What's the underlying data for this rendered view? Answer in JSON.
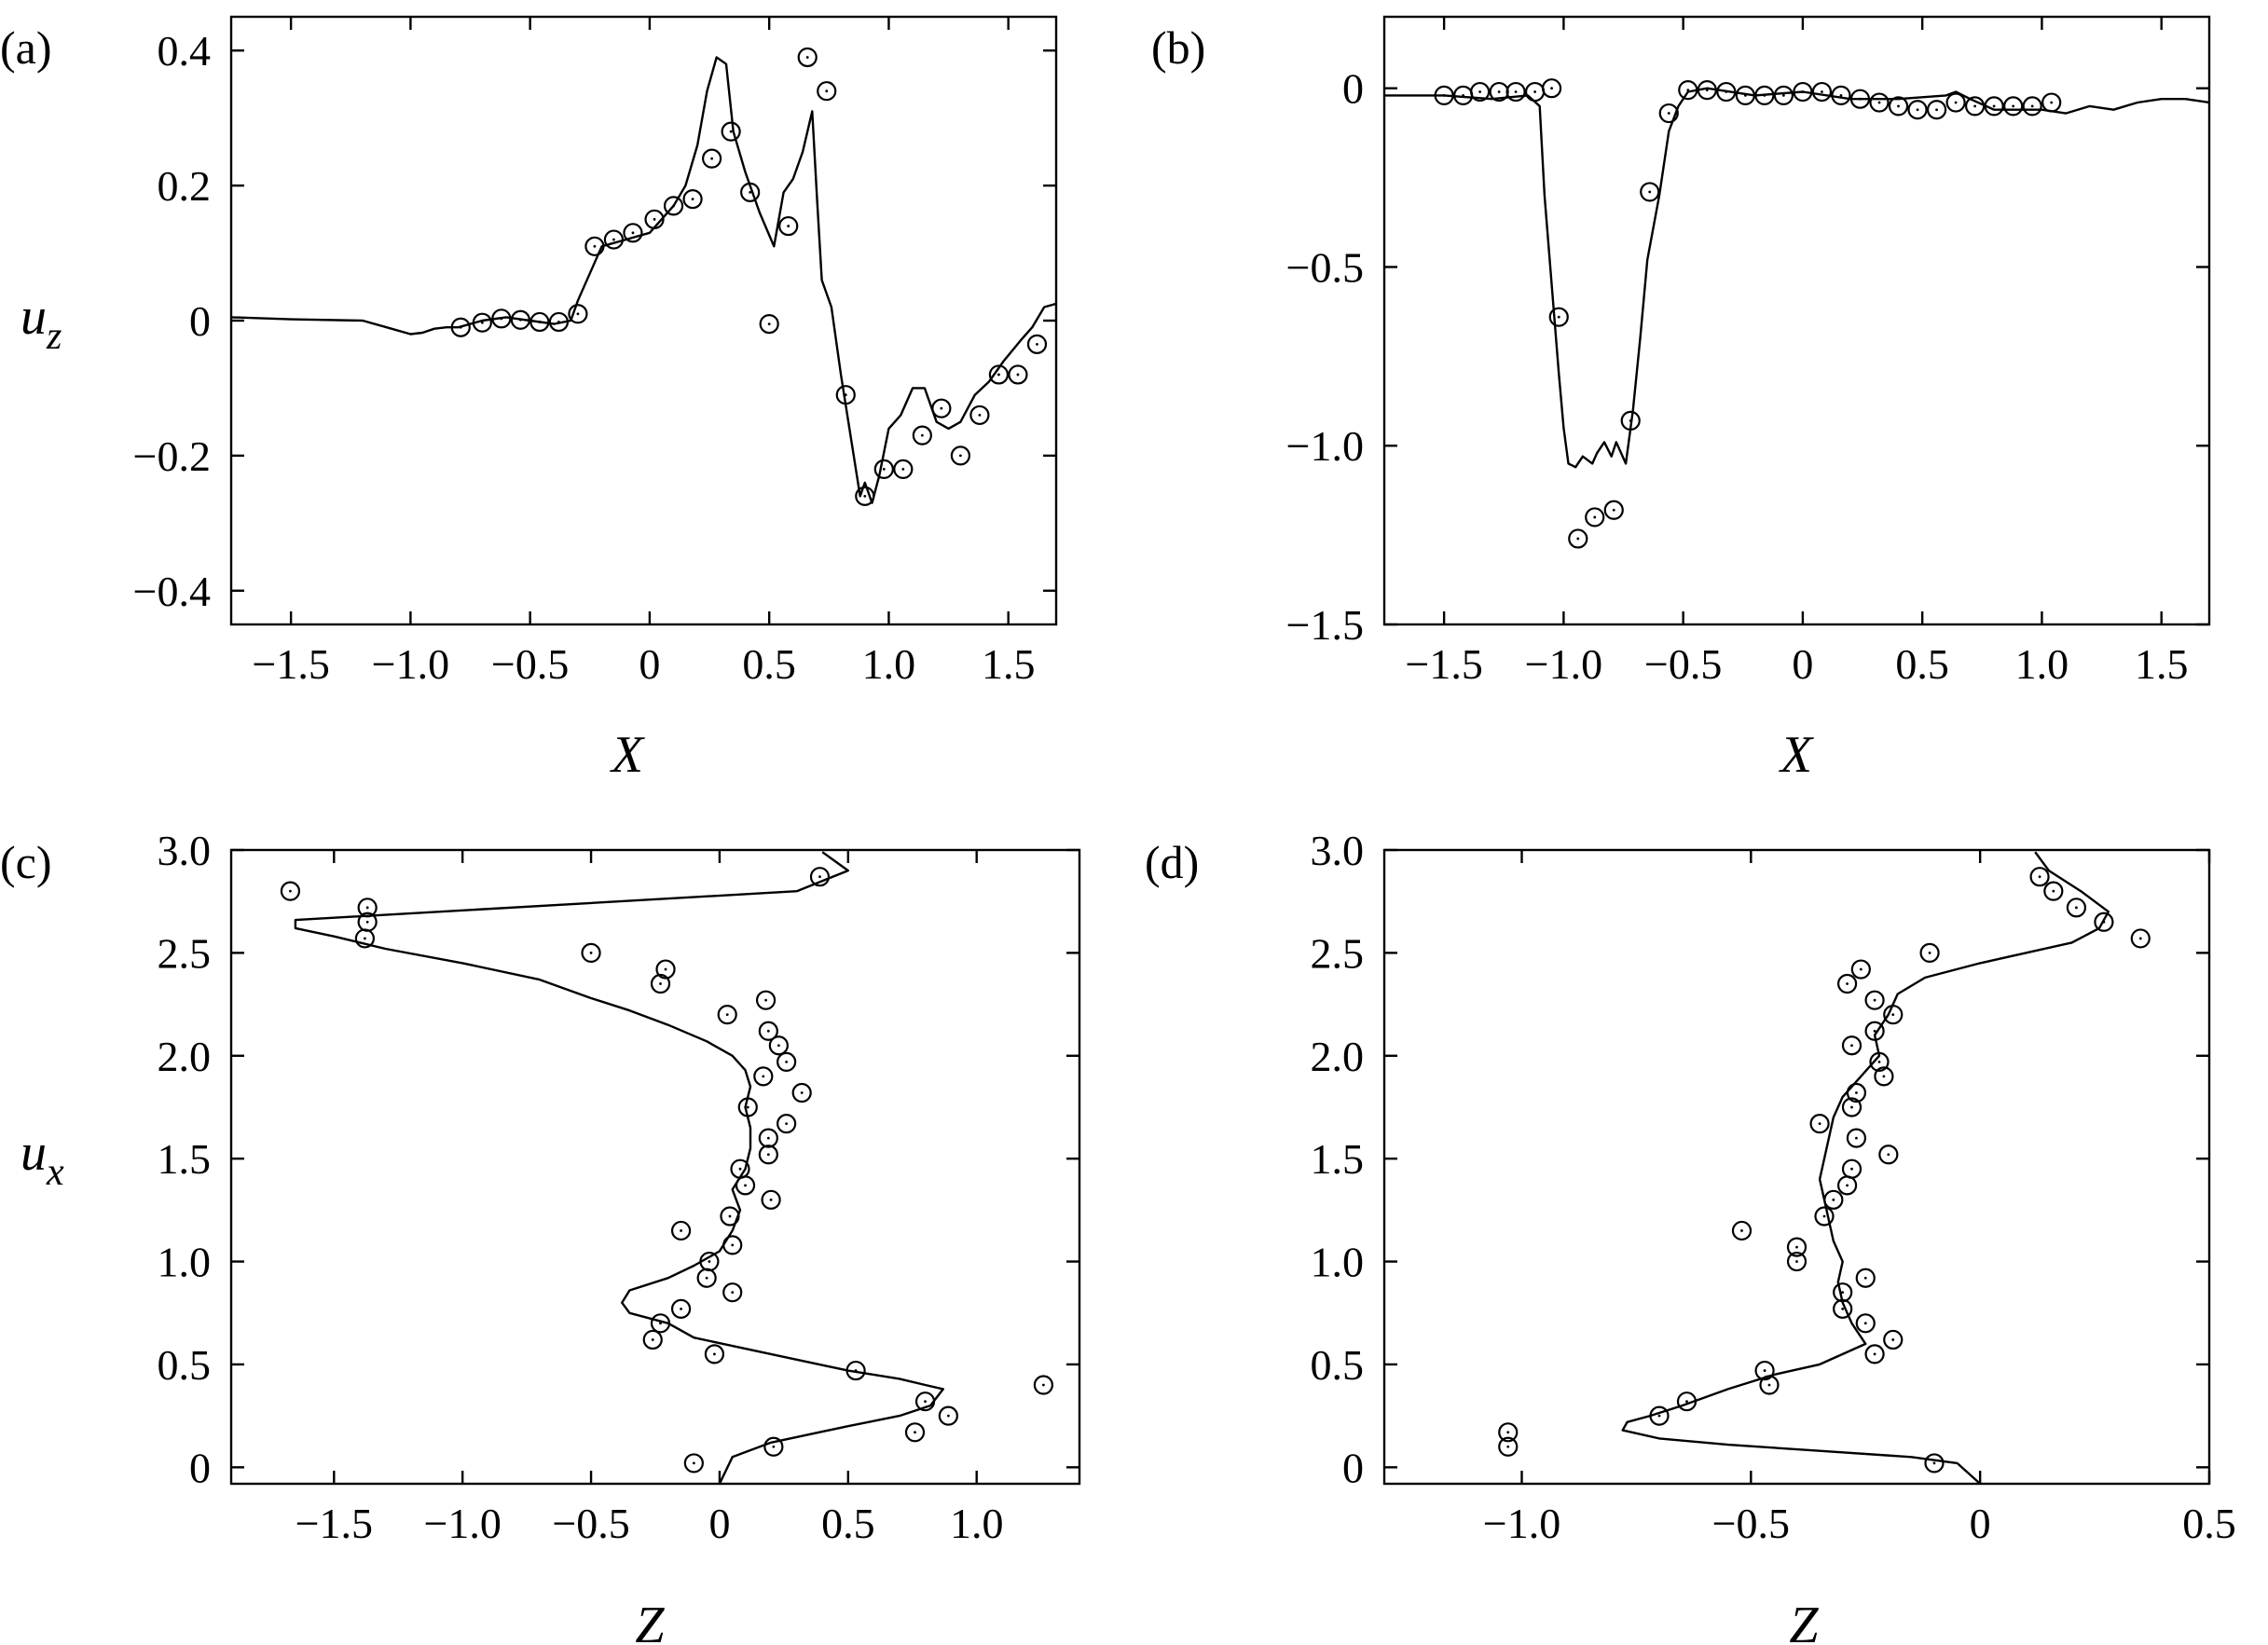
{
  "chart_data": [
    {
      "panel": "(a)",
      "type": "line",
      "xlabel": "X",
      "ylabel_main": "u",
      "ylabel_sub": "z",
      "xlim": [
        -1.75,
        1.7
      ],
      "ylim": [
        -0.45,
        0.45
      ],
      "xticks": [
        -1.5,
        -1.0,
        -0.5,
        0,
        0.5,
        1.0,
        1.5
      ],
      "xtick_labels": [
        "−1.5",
        "−1.0",
        "−0.5",
        "0",
        "0.5",
        "1.0",
        "1.5"
      ],
      "yticks": [
        -0.4,
        -0.2,
        0,
        0.2,
        0.4
      ],
      "ytick_labels": [
        "−0.4",
        "−0.2",
        "0",
        "0.2",
        "0.4"
      ],
      "line": {
        "x": [
          -1.75,
          -1.5,
          -1.2,
          -1.1,
          -1.0,
          -0.95,
          -0.9,
          -0.85,
          -0.8,
          -0.7,
          -0.6,
          -0.5,
          -0.4,
          -0.33,
          -0.3,
          -0.25,
          -0.2,
          -0.1,
          0.0,
          0.1,
          0.15,
          0.2,
          0.24,
          0.28,
          0.32,
          0.35,
          0.4,
          0.46,
          0.52,
          0.56,
          0.6,
          0.64,
          0.68,
          0.7,
          0.72,
          0.76,
          0.8,
          0.84,
          0.88,
          0.9,
          0.93,
          0.96,
          1.0,
          1.05,
          1.1,
          1.15,
          1.2,
          1.25,
          1.3,
          1.36,
          1.42,
          1.48,
          1.55,
          1.6,
          1.65,
          1.7
        ],
        "y": [
          0.005,
          0.002,
          0.0,
          -0.01,
          -0.02,
          -0.018,
          -0.012,
          -0.01,
          -0.01,
          0.0,
          0.005,
          0.0,
          -0.005,
          0.0,
          0.03,
          0.07,
          0.11,
          0.12,
          0.13,
          0.17,
          0.2,
          0.26,
          0.34,
          0.39,
          0.38,
          0.28,
          0.22,
          0.16,
          0.11,
          0.19,
          0.21,
          0.25,
          0.31,
          0.18,
          0.06,
          0.02,
          -0.08,
          -0.17,
          -0.26,
          -0.24,
          -0.27,
          -0.23,
          -0.16,
          -0.14,
          -0.1,
          -0.1,
          -0.15,
          -0.16,
          -0.15,
          -0.11,
          -0.09,
          -0.06,
          -0.03,
          -0.01,
          0.02,
          0.025
        ]
      },
      "points": {
        "x": [
          -0.79,
          -0.7,
          -0.62,
          -0.54,
          -0.46,
          -0.38,
          -0.3,
          -0.23,
          -0.15,
          -0.07,
          0.02,
          0.1,
          0.18,
          0.26,
          0.34,
          0.42,
          0.5,
          0.58,
          0.66,
          0.74,
          0.82,
          0.9,
          0.98,
          1.06,
          1.14,
          1.22,
          1.3,
          1.38,
          1.46,
          1.54,
          1.62
        ],
        "y": [
          -0.01,
          -0.003,
          0.003,
          0.001,
          -0.002,
          -0.002,
          0.01,
          0.11,
          0.12,
          0.13,
          0.15,
          0.17,
          0.18,
          0.24,
          0.28,
          0.19,
          -0.005,
          0.14,
          0.39,
          0.34,
          -0.11,
          -0.26,
          -0.22,
          -0.22,
          -0.17,
          -0.13,
          -0.2,
          -0.14,
          -0.08,
          -0.08,
          -0.035
        ]
      }
    },
    {
      "panel": "(b)",
      "type": "line",
      "xlabel": "X",
      "xlim": [
        -1.75,
        1.7
      ],
      "ylim": [
        -1.5,
        0.2
      ],
      "xticks": [
        -1.5,
        -1.0,
        -0.5,
        0,
        0.5,
        1.0,
        1.5
      ],
      "xtick_labels": [
        "−1.5",
        "−1.0",
        "−0.5",
        "0",
        "0.5",
        "1.0",
        "1.5"
      ],
      "yticks": [
        -1.5,
        -1.0,
        -0.5,
        0
      ],
      "ytick_labels": [
        "−1.5",
        "−1.0",
        "−0.5",
        "0"
      ],
      "line": {
        "x": [
          -1.75,
          -1.5,
          -1.3,
          -1.15,
          -1.1,
          -1.08,
          -1.05,
          -1.02,
          -1.0,
          -0.98,
          -0.95,
          -0.92,
          -0.88,
          -0.86,
          -0.83,
          -0.8,
          -0.78,
          -0.74,
          -0.71,
          -0.68,
          -0.65,
          -0.6,
          -0.56,
          -0.52,
          -0.48,
          -0.4,
          -0.2,
          0.0,
          0.2,
          0.4,
          0.6,
          0.64,
          0.7,
          0.8,
          0.9,
          1.0,
          1.1,
          1.2,
          1.3,
          1.4,
          1.5,
          1.6,
          1.7
        ],
        "y": [
          -0.02,
          -0.02,
          -0.03,
          -0.02,
          -0.05,
          -0.3,
          -0.55,
          -0.8,
          -0.95,
          -1.05,
          -1.06,
          -1.03,
          -1.05,
          -1.02,
          -0.99,
          -1.03,
          -0.99,
          -1.05,
          -0.9,
          -0.7,
          -0.48,
          -0.3,
          -0.12,
          -0.05,
          -0.01,
          0.0,
          -0.02,
          -0.01,
          -0.03,
          -0.03,
          -0.02,
          -0.01,
          -0.03,
          -0.06,
          -0.06,
          -0.06,
          -0.07,
          -0.05,
          -0.06,
          -0.04,
          -0.03,
          -0.03,
          -0.04
        ]
      },
      "points": {
        "x": [
          -1.5,
          -1.42,
          -1.35,
          -1.27,
          -1.2,
          -1.12,
          -1.05,
          -1.02,
          -0.94,
          -0.87,
          -0.79,
          -0.72,
          -0.64,
          -0.56,
          -0.48,
          -0.4,
          -0.32,
          -0.24,
          -0.16,
          -0.08,
          0.0,
          0.08,
          0.16,
          0.24,
          0.32,
          0.4,
          0.48,
          0.56,
          0.64,
          0.72,
          0.8,
          0.88,
          0.96,
          1.04
        ],
        "y": [
          -0.02,
          -0.02,
          -0.01,
          -0.01,
          -0.01,
          -0.01,
          0.0,
          -0.64,
          -1.26,
          -1.2,
          -1.18,
          -0.93,
          -0.29,
          -0.07,
          -0.005,
          -0.005,
          -0.01,
          -0.02,
          -0.02,
          -0.02,
          -0.01,
          -0.01,
          -0.02,
          -0.03,
          -0.04,
          -0.05,
          -0.06,
          -0.06,
          -0.04,
          -0.05,
          -0.05,
          -0.05,
          -0.05,
          -0.04
        ]
      }
    },
    {
      "panel": "(c)",
      "type": "line",
      "xlabel": "Z",
      "ylabel_main": "u",
      "ylabel_sub": "x",
      "xlim": [
        -1.9,
        1.4
      ],
      "ylim": [
        -0.08,
        3.0
      ],
      "xticks": [
        -1.5,
        -1.0,
        -0.5,
        0,
        0.5,
        1.0
      ],
      "xtick_labels": [
        "−1.5",
        "−1.0",
        "−0.5",
        "0",
        "0.5",
        "1.0"
      ],
      "yticks": [
        0,
        0.5,
        1.0,
        1.5,
        2.0,
        2.5,
        3.0
      ],
      "ytick_labels": [
        "0",
        "0.5",
        "1.0",
        "1.5",
        "2.0",
        "2.5",
        "3.0"
      ],
      "line": {
        "x": [
          0.4,
          0.5,
          0.3,
          -1.65,
          -1.65,
          -1.5,
          -1.3,
          -1.0,
          -0.7,
          -0.5,
          -0.35,
          -0.2,
          -0.05,
          0.05,
          0.1,
          0.12,
          0.1,
          0.12,
          0.12,
          0.1,
          0.05,
          0.08,
          0.05,
          0.0,
          -0.1,
          -0.2,
          -0.35,
          -0.38,
          -0.35,
          -0.2,
          -0.1,
          0.2,
          0.5,
          0.7,
          0.8,
          0.87,
          0.82,
          0.7,
          0.5,
          0.2,
          0.05,
          0.0
        ],
        "y": [
          2.99,
          2.9,
          2.8,
          2.66,
          2.62,
          2.58,
          2.52,
          2.45,
          2.37,
          2.28,
          2.22,
          2.15,
          2.07,
          2.0,
          1.93,
          1.85,
          1.75,
          1.65,
          1.55,
          1.45,
          1.35,
          1.25,
          1.15,
          1.05,
          0.98,
          0.92,
          0.86,
          0.8,
          0.75,
          0.7,
          0.63,
          0.55,
          0.47,
          0.43,
          0.4,
          0.38,
          0.3,
          0.25,
          0.2,
          0.12,
          0.05,
          -0.08
        ]
      },
      "points": {
        "x": [
          -0.1,
          0.21,
          0.76,
          0.89,
          0.8,
          1.26,
          0.53,
          -0.02,
          -0.26,
          -0.23,
          -0.15,
          0.05,
          -0.05,
          -0.04,
          0.05,
          -0.15,
          0.04,
          0.2,
          0.1,
          0.08,
          0.19,
          0.19,
          0.26,
          0.11,
          0.32,
          0.17,
          0.26,
          0.23,
          0.19,
          0.03,
          -0.23,
          -0.21,
          -0.5,
          0.18,
          -1.38,
          -1.37,
          -1.37,
          -1.67,
          0.39
        ],
        "y": [
          0.02,
          0.1,
          0.17,
          0.25,
          0.32,
          0.4,
          0.47,
          0.55,
          0.62,
          0.7,
          0.77,
          0.85,
          0.92,
          1.0,
          1.08,
          1.15,
          1.22,
          1.3,
          1.37,
          1.45,
          1.52,
          1.6,
          1.67,
          1.75,
          1.82,
          1.9,
          1.97,
          2.05,
          2.12,
          2.2,
          2.35,
          2.42,
          2.5,
          2.27,
          2.57,
          2.65,
          2.72,
          2.8,
          2.87
        ]
      }
    },
    {
      "panel": "(d)",
      "type": "line",
      "xlabel": "Z",
      "xlim": [
        -1.3,
        0.5
      ],
      "ylim": [
        -0.08,
        3.0
      ],
      "xticks": [
        -1.0,
        -0.5,
        0,
        0.5
      ],
      "xtick_labels": [
        "−1.0",
        "−0.5",
        "0",
        "0.5"
      ],
      "yticks": [
        0,
        0.5,
        1.0,
        1.5,
        2.0,
        2.5,
        3.0
      ],
      "ytick_labels": [
        "0",
        "0.5",
        "1.0",
        "1.5",
        "2.0",
        "2.5",
        "3.0"
      ],
      "line": {
        "x": [
          0.12,
          0.15,
          0.22,
          0.28,
          0.26,
          0.2,
          0.0,
          -0.12,
          -0.18,
          -0.2,
          -0.23,
          -0.22,
          -0.26,
          -0.3,
          -0.32,
          -0.33,
          -0.34,
          -0.35,
          -0.34,
          -0.33,
          -0.32,
          -0.3,
          -0.31,
          -0.3,
          -0.28,
          -0.25,
          -0.3,
          -0.35,
          -0.45,
          -0.55,
          -0.65,
          -0.72,
          -0.77,
          -0.78,
          -0.7,
          -0.55,
          -0.35,
          -0.15,
          -0.05,
          0.0
        ],
        "y": [
          2.99,
          2.9,
          2.8,
          2.7,
          2.62,
          2.55,
          2.45,
          2.38,
          2.3,
          2.2,
          2.1,
          2.0,
          1.9,
          1.8,
          1.7,
          1.6,
          1.5,
          1.4,
          1.3,
          1.2,
          1.1,
          1.0,
          0.9,
          0.8,
          0.7,
          0.6,
          0.55,
          0.5,
          0.45,
          0.38,
          0.3,
          0.25,
          0.22,
          0.18,
          0.14,
          0.11,
          0.08,
          0.05,
          0.02,
          -0.08
        ]
      },
      "points": {
        "x": [
          -0.1,
          -1.03,
          -1.03,
          -0.7,
          -0.64,
          -0.46,
          -0.47,
          -0.19,
          -0.23,
          -0.25,
          -0.3,
          -0.25,
          -0.3,
          -0.4,
          -0.4,
          -0.52,
          -0.34,
          -0.32,
          -0.29,
          -0.28,
          -0.2,
          -0.27,
          -0.35,
          -0.28,
          -0.27,
          -0.21,
          -0.22,
          -0.28,
          -0.23,
          -0.19,
          -0.23,
          -0.29,
          -0.26,
          -0.11,
          0.35,
          0.27,
          0.21,
          0.16,
          0.13
        ],
        "y": [
          0.02,
          0.1,
          0.17,
          0.25,
          0.32,
          0.4,
          0.47,
          0.62,
          0.55,
          0.7,
          0.77,
          0.92,
          0.85,
          1.0,
          1.07,
          1.15,
          1.22,
          1.3,
          1.37,
          1.45,
          1.52,
          1.6,
          1.67,
          1.75,
          1.82,
          1.9,
          1.97,
          2.05,
          2.12,
          2.2,
          2.27,
          2.35,
          2.42,
          2.5,
          2.57,
          2.65,
          2.72,
          2.8,
          2.87
        ]
      }
    }
  ]
}
